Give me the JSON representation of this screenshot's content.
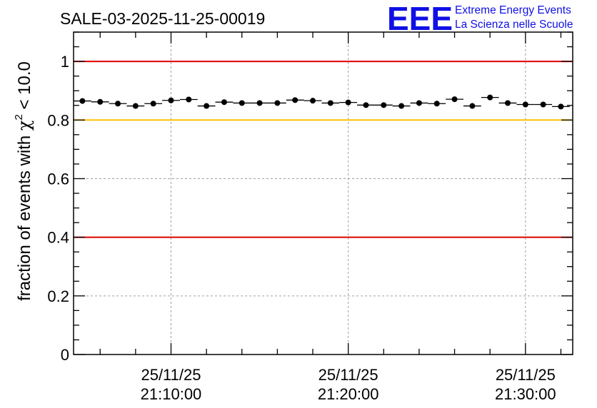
{
  "title": "SALE-03-2025-11-25-00019",
  "logo": {
    "letters": "EEE",
    "line1": "Extreme Energy Events",
    "line2": "La Scienza nelle Scuole"
  },
  "colors": {
    "upper_line": "#e00000",
    "lower_line": "#e00000",
    "warn_line": "#ffc000",
    "markers": "#000000",
    "grid": "#a0a0a0",
    "logo": "#1010e6"
  },
  "chart_data": {
    "type": "scatter",
    "title": "SALE-03-2025-11-25-00019",
    "ylabel": "fraction of events with χ² < 10.0",
    "ylabel_parts": {
      "pre": "fraction of events with ",
      "chi": "χ",
      "exp": "2",
      "post": " < 10.0"
    },
    "xlabel": "",
    "ylim": [
      0,
      1.1
    ],
    "y_ticks": [
      {
        "value": 0,
        "label": "0"
      },
      {
        "value": 0.2,
        "label": "0.2"
      },
      {
        "value": 0.4,
        "label": "0.4"
      },
      {
        "value": 0.6,
        "label": "0.6"
      },
      {
        "value": 0.8,
        "label": "0.8"
      },
      {
        "value": 1,
        "label": "1"
      }
    ],
    "x_range": [
      "2025-11-25 21:04:30",
      "2025-11-25 21:32:40"
    ],
    "x_ticks": [
      {
        "time": "2025-11-25 21:10:00",
        "date": "25/11/25",
        "clock": "21:10:00"
      },
      {
        "time": "2025-11-25 21:20:00",
        "date": "25/11/25",
        "clock": "21:20:00"
      },
      {
        "time": "2025-11-25 21:30:00",
        "date": "25/11/25",
        "clock": "21:30:00"
      }
    ],
    "grid": true,
    "reference_lines": [
      {
        "y": 1.0,
        "color": "#e00000"
      },
      {
        "y": 0.8,
        "color": "#ffc000"
      },
      {
        "y": 0.4,
        "color": "#e00000"
      }
    ],
    "bin_width_seconds": 60,
    "points": [
      {
        "x": "2025-11-25 21:05:00",
        "y": 0.865
      },
      {
        "x": "2025-11-25 21:06:00",
        "y": 0.862
      },
      {
        "x": "2025-11-25 21:07:00",
        "y": 0.856
      },
      {
        "x": "2025-11-25 21:08:00",
        "y": 0.848
      },
      {
        "x": "2025-11-25 21:09:00",
        "y": 0.856
      },
      {
        "x": "2025-11-25 21:10:00",
        "y": 0.867
      },
      {
        "x": "2025-11-25 21:11:00",
        "y": 0.87
      },
      {
        "x": "2025-11-25 21:12:00",
        "y": 0.848
      },
      {
        "x": "2025-11-25 21:13:00",
        "y": 0.861
      },
      {
        "x": "2025-11-25 21:14:00",
        "y": 0.858
      },
      {
        "x": "2025-11-25 21:15:00",
        "y": 0.858
      },
      {
        "x": "2025-11-25 21:16:00",
        "y": 0.858
      },
      {
        "x": "2025-11-25 21:17:00",
        "y": 0.868
      },
      {
        "x": "2025-11-25 21:18:00",
        "y": 0.866
      },
      {
        "x": "2025-11-25 21:19:00",
        "y": 0.858
      },
      {
        "x": "2025-11-25 21:20:00",
        "y": 0.86
      },
      {
        "x": "2025-11-25 21:21:00",
        "y": 0.851
      },
      {
        "x": "2025-11-25 21:22:00",
        "y": 0.851
      },
      {
        "x": "2025-11-25 21:23:00",
        "y": 0.848
      },
      {
        "x": "2025-11-25 21:24:00",
        "y": 0.858
      },
      {
        "x": "2025-11-25 21:25:00",
        "y": 0.856
      },
      {
        "x": "2025-11-25 21:26:00",
        "y": 0.871
      },
      {
        "x": "2025-11-25 21:27:00",
        "y": 0.848
      },
      {
        "x": "2025-11-25 21:28:00",
        "y": 0.877
      },
      {
        "x": "2025-11-25 21:29:00",
        "y": 0.858
      },
      {
        "x": "2025-11-25 21:30:00",
        "y": 0.853
      },
      {
        "x": "2025-11-25 21:31:00",
        "y": 0.853
      },
      {
        "x": "2025-11-25 21:32:00",
        "y": 0.846
      }
    ]
  }
}
